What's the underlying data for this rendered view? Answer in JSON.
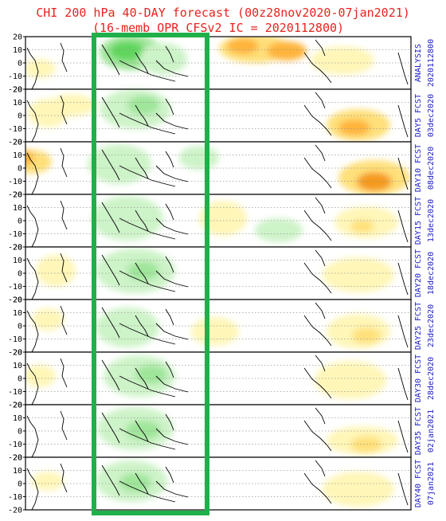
{
  "title": {
    "line1": "CHI 200 hPa 40-DAY forecast (00z28nov2020-07jan2021)",
    "line2": "(16-memb OPR CFSv2 IC = 2020112800)"
  },
  "chart_data": {
    "type": "heatmap",
    "panels": [
      {
        "label": "ANALYSIS",
        "date": "2020112800"
      },
      {
        "label": "DAY5 FCST",
        "date": "03dec2020"
      },
      {
        "label": "DAY10 FCST",
        "date": "08dec2020"
      },
      {
        "label": "DAY15 FCST",
        "date": "13dec2020"
      },
      {
        "label": "DAY20 FCST",
        "date": "18dec2020"
      },
      {
        "label": "DAY25 FCST",
        "date": "23dec2020"
      },
      {
        "label": "DAY30 FCST",
        "date": "28dec2020"
      },
      {
        "label": "DAY35 FCST",
        "date": "02jan2021"
      },
      {
        "label": "DAY40 FCST",
        "date": "07jan2021"
      }
    ],
    "y_ticks": [
      "20",
      "10",
      "0",
      "-10",
      "-20"
    ],
    "ylim": [
      -20,
      20
    ],
    "colors": {
      "title": "#e8231e",
      "panel_label": "#1e1ec8",
      "highlight_box": "#1fb04a",
      "green_light": "#cdf3c8",
      "green_mid": "#9fe59a",
      "green_dark": "#5fd65c",
      "yellow_light": "#fff6b8",
      "yellow_mid": "#ffe07a",
      "orange": "#ffb43a",
      "orange_dark": "#f59a1a"
    }
  }
}
